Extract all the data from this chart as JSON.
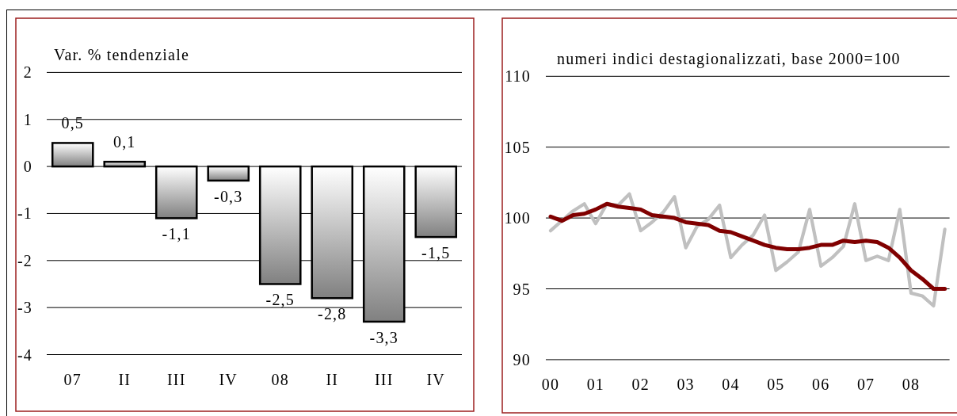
{
  "chart_data": [
    {
      "type": "bar",
      "ylabel": "Var. % tendenziale",
      "categories": [
        "07",
        "II",
        "III",
        "IV",
        "08",
        "II",
        "III",
        "IV"
      ],
      "values": [
        0.5,
        0.1,
        -1.1,
        -0.3,
        -2.5,
        -2.8,
        -3.3,
        -1.5
      ],
      "value_labels": [
        "0,5",
        "0,1",
        "-1,1",
        "-0,3",
        "-2,5",
        "-2,8",
        "-3,3",
        "-1,5"
      ],
      "color": "#808080",
      "ylim": [
        -4,
        2
      ],
      "yticks": [
        -4,
        -3,
        -2,
        -1,
        0,
        1,
        2
      ],
      "grid": "y"
    },
    {
      "type": "line",
      "ylabel": "numeri indici destagionalizzati, base 2000=100",
      "categories": [
        "00",
        null,
        null,
        null,
        "01",
        null,
        null,
        null,
        "02",
        null,
        null,
        null,
        "03",
        null,
        null,
        null,
        "04",
        null,
        null,
        null,
        "05",
        null,
        null,
        null,
        "06",
        null,
        null,
        null,
        "07",
        null,
        null,
        null,
        "08",
        null,
        null,
        null
      ],
      "series": [
        {
          "color": "#c0c0c0",
          "values": [
            99.1,
            99.8,
            100.5,
            101.0,
            99.6,
            101.0,
            100.9,
            101.7,
            99.1,
            99.7,
            100.4,
            101.5,
            97.9,
            99.4,
            99.9,
            100.9,
            97.2,
            98.1,
            98.8,
            100.2,
            96.3,
            96.9,
            97.6,
            100.6,
            96.6,
            97.2,
            98.0,
            101.0,
            97.0,
            97.3,
            97.0,
            100.6,
            94.7,
            94.5,
            93.8,
            99.2
          ]
        },
        {
          "color": "#800000",
          "values": [
            100.1,
            99.8,
            100.2,
            100.3,
            100.6,
            101.0,
            100.8,
            100.7,
            100.6,
            100.2,
            100.1,
            100.0,
            99.7,
            99.6,
            99.5,
            99.1,
            99.0,
            98.7,
            98.4,
            98.1,
            97.9,
            97.8,
            97.8,
            97.9,
            98.1,
            98.1,
            98.4,
            98.3,
            98.4,
            98.3,
            97.9,
            97.2,
            96.3,
            95.7,
            95.0,
            95.0
          ]
        }
      ],
      "ylim": [
        90,
        110
      ],
      "yticks": [
        90,
        95,
        100,
        105,
        110
      ],
      "grid": "y"
    }
  ]
}
